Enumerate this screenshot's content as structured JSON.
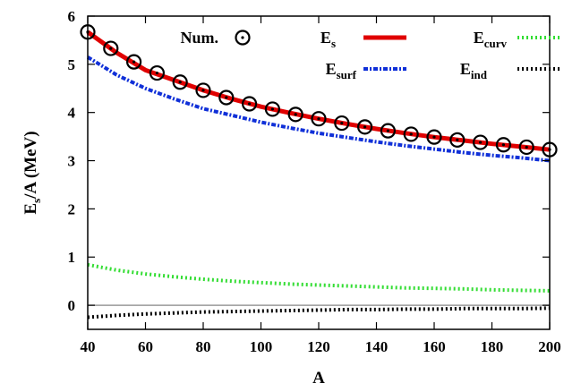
{
  "chart_data": {
    "type": "line",
    "xlabel": "A",
    "ylabel": {
      "main": "E",
      "sub": "s",
      "rest": "/A (MeV)"
    },
    "xlim": [
      40,
      200
    ],
    "ylim": [
      -0.5,
      6
    ],
    "xticks": [
      "40",
      "60",
      "80",
      "100",
      "120",
      "140",
      "160",
      "180",
      "200"
    ],
    "yticks": [
      "0",
      "1",
      "2",
      "3",
      "4",
      "5",
      "6"
    ],
    "grid": false,
    "legend_position": "top-right",
    "series": [
      {
        "name": "Num.",
        "legend": {
          "main": "Num.",
          "sub": ""
        },
        "style": "circles-dot",
        "color": "#000000",
        "x": [
          40,
          48,
          56,
          64,
          72,
          80,
          88,
          96,
          104,
          112,
          120,
          128,
          136,
          144,
          152,
          160,
          168,
          176,
          184,
          192,
          200
        ],
        "y": [
          5.67,
          5.33,
          5.05,
          4.82,
          4.63,
          4.46,
          4.31,
          4.18,
          4.07,
          3.96,
          3.87,
          3.78,
          3.7,
          3.62,
          3.55,
          3.49,
          3.43,
          3.38,
          3.33,
          3.28,
          3.23
        ]
      },
      {
        "name": "Es",
        "legend": {
          "main": "E",
          "sub": "s"
        },
        "style": "solid-thick",
        "color": "#e00000",
        "x": [
          40,
          50,
          60,
          70,
          80,
          90,
          100,
          110,
          120,
          130,
          140,
          150,
          160,
          170,
          180,
          190,
          200
        ],
        "y": [
          5.67,
          5.24,
          4.88,
          4.67,
          4.46,
          4.28,
          4.12,
          3.99,
          3.87,
          3.76,
          3.66,
          3.57,
          3.49,
          3.42,
          3.35,
          3.29,
          3.23
        ]
      },
      {
        "name": "Esurf",
        "legend": {
          "main": "E",
          "sub": "surf"
        },
        "style": "dash-dot",
        "color": "#1030d8",
        "x": [
          40,
          50,
          60,
          70,
          80,
          90,
          100,
          110,
          120,
          130,
          140,
          150,
          160,
          170,
          180,
          190,
          200
        ],
        "y": [
          5.15,
          4.78,
          4.5,
          4.28,
          4.08,
          3.94,
          3.8,
          3.68,
          3.57,
          3.48,
          3.39,
          3.31,
          3.24,
          3.17,
          3.11,
          3.06,
          3.0
        ]
      },
      {
        "name": "Ecurv",
        "legend": {
          "main": "E",
          "sub": "curv"
        },
        "style": "dotted",
        "color": "#33dd33",
        "x": [
          40,
          50,
          60,
          70,
          80,
          90,
          100,
          110,
          120,
          130,
          140,
          150,
          160,
          170,
          180,
          190,
          200
        ],
        "y": [
          0.84,
          0.73,
          0.65,
          0.59,
          0.54,
          0.5,
          0.47,
          0.44,
          0.42,
          0.4,
          0.38,
          0.36,
          0.35,
          0.34,
          0.32,
          0.31,
          0.3
        ]
      },
      {
        "name": "Eind",
        "legend": {
          "main": "E",
          "sub": "ind"
        },
        "style": "dotted",
        "color": "#000000",
        "x": [
          40,
          50,
          60,
          70,
          80,
          90,
          100,
          110,
          120,
          130,
          140,
          150,
          160,
          170,
          180,
          190,
          200
        ],
        "y": [
          -0.25,
          -0.21,
          -0.18,
          -0.16,
          -0.14,
          -0.13,
          -0.12,
          -0.11,
          -0.1,
          -0.09,
          -0.09,
          -0.08,
          -0.08,
          -0.07,
          -0.07,
          -0.07,
          -0.06
        ]
      }
    ],
    "reference_lines": [
      {
        "y": 0,
        "color": "#999999"
      }
    ]
  }
}
